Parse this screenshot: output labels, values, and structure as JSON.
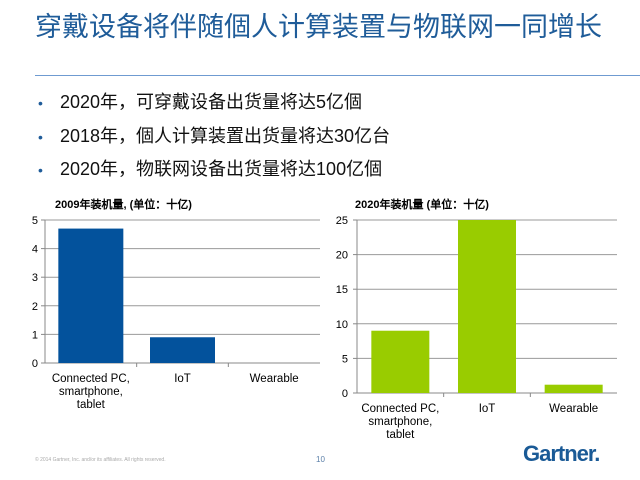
{
  "slide": {
    "title": "穿戴设备将伴随個人计算装置与物联网一同增长",
    "bullets": [
      "2020年，可穿戴设备出货量将达5亿個",
      "2018年，個人计算装置出货量将达30亿台",
      "2020年，物联网设备出货量将达100亿個"
    ],
    "footer": "© 2014 Gartner, Inc. and/or its affiliates. All rights reserved.",
    "page_number": "10",
    "logo_text": "Gartner."
  },
  "chart_data": [
    {
      "type": "bar",
      "title": "2009年装机量, (单位：十亿)",
      "categories": [
        "Connected PC,\nsmartphone,\ntablet",
        "IoT",
        "Wearable"
      ],
      "values": [
        4.7,
        0.9,
        0
      ],
      "ylim": [
        0,
        5
      ],
      "yticks": [
        0,
        1,
        2,
        3,
        4,
        5
      ],
      "grid": true,
      "color": "#03529c"
    },
    {
      "type": "bar",
      "title": "2020年装机量 (单位：十亿)",
      "categories": [
        "Connected PC,\nsmartphone,\ntablet",
        "IoT",
        "Wearable"
      ],
      "values": [
        9,
        25,
        1.2
      ],
      "ylim": [
        0,
        25
      ],
      "yticks": [
        0,
        5,
        10,
        15,
        20,
        25
      ],
      "grid": true,
      "color": "#99cc00"
    }
  ]
}
